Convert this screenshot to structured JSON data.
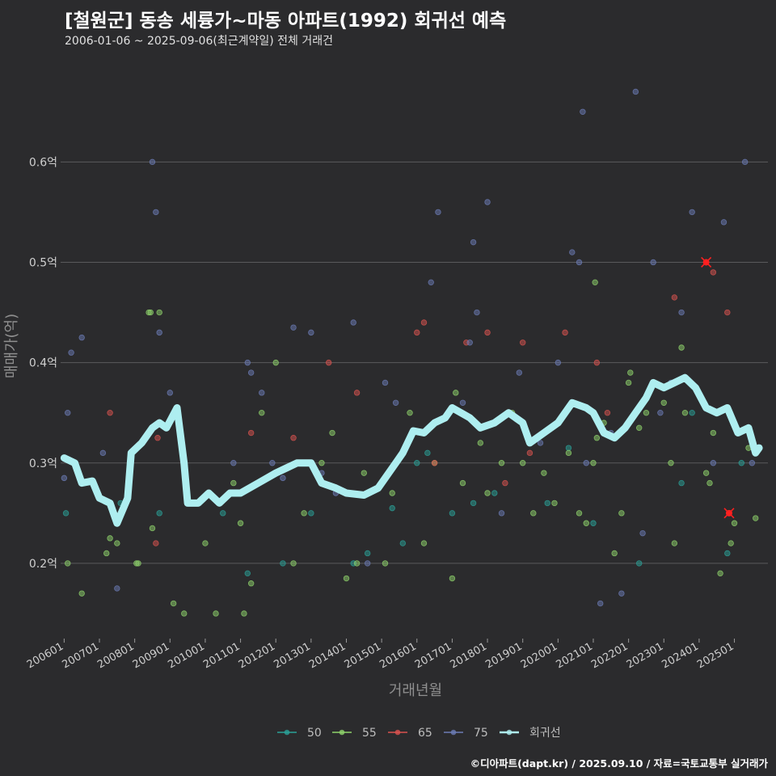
{
  "header": {
    "title": "[철원군] 동송 세륭가~마동 아파트(1992) 회귀선 예측",
    "subtitle": "2006-01-06 ~ 2025-09-06(최근계약일) 전체 거래건"
  },
  "footer": {
    "credit": "©디아파트(dapt.kr) / 2025.09.10 / 자료=국토교통부 실거래가"
  },
  "colors": {
    "background": "#2b2b2d",
    "grid": "#5a5a5c",
    "s50": "#2aa198",
    "s55": "#8fd36b",
    "s65": "#d9534f",
    "s75": "#6c7cb5",
    "regression": "#aeeef0",
    "highlight": "#ff2020"
  },
  "chart_data": {
    "type": "scatter",
    "title": "[철원군] 동송 세륭가~마동 아파트(1992) 회귀선 예측",
    "xlabel": "거래년월",
    "ylabel": "매매가(억)",
    "xlim": [
      2005.9,
      2025.95
    ],
    "ylim": [
      0.125,
      0.705
    ],
    "yticks": [
      0.2,
      0.3,
      0.4,
      0.5,
      0.6
    ],
    "ytick_labels": [
      "0.2억",
      "0.3억",
      "0.4억",
      "0.5억",
      "0.6억"
    ],
    "xticks": [
      2006,
      2007,
      2008,
      2009,
      2010,
      2011,
      2012,
      2013,
      2014,
      2015,
      2016,
      2017,
      2018,
      2019,
      2020,
      2021,
      2022,
      2023,
      2024,
      2025
    ],
    "xtick_labels": [
      "200601",
      "200701",
      "200801",
      "200901",
      "201001",
      "201101",
      "201201",
      "201301",
      "201401",
      "201501",
      "201601",
      "201701",
      "201801",
      "201901",
      "202001",
      "202101",
      "202201",
      "202301",
      "202401",
      "202501"
    ],
    "legend": {
      "position": "bottom",
      "entries": [
        "50",
        "55",
        "65",
        "75",
        "회귀선"
      ]
    },
    "series": [
      {
        "name": "50",
        "points": [
          [
            2006.05,
            0.25
          ],
          [
            2007.6,
            0.26
          ],
          [
            2008.7,
            0.25
          ],
          [
            2010.5,
            0.25
          ],
          [
            2011.2,
            0.19
          ],
          [
            2012.2,
            0.2
          ],
          [
            2013.0,
            0.25
          ],
          [
            2014.2,
            0.2
          ],
          [
            2014.6,
            0.21
          ],
          [
            2015.3,
            0.255
          ],
          [
            2015.6,
            0.22
          ],
          [
            2016.0,
            0.3
          ],
          [
            2016.3,
            0.31
          ],
          [
            2017.0,
            0.25
          ],
          [
            2017.6,
            0.26
          ],
          [
            2018.2,
            0.27
          ],
          [
            2019.7,
            0.26
          ],
          [
            2020.3,
            0.315
          ],
          [
            2021.0,
            0.24
          ],
          [
            2022.3,
            0.2
          ],
          [
            2023.5,
            0.28
          ],
          [
            2023.8,
            0.35
          ],
          [
            2024.8,
            0.21
          ],
          [
            2025.2,
            0.3
          ]
        ]
      },
      {
        "name": "55",
        "points": [
          [
            2006.1,
            0.2
          ],
          [
            2006.5,
            0.17
          ],
          [
            2007.2,
            0.21
          ],
          [
            2007.3,
            0.225
          ],
          [
            2007.5,
            0.22
          ],
          [
            2008.05,
            0.2
          ],
          [
            2008.1,
            0.2
          ],
          [
            2008.4,
            0.45
          ],
          [
            2008.45,
            0.45
          ],
          [
            2008.5,
            0.235
          ],
          [
            2008.7,
            0.45
          ],
          [
            2009.1,
            0.16
          ],
          [
            2009.4,
            0.15
          ],
          [
            2010.0,
            0.22
          ],
          [
            2010.3,
            0.15
          ],
          [
            2010.8,
            0.28
          ],
          [
            2011.0,
            0.24
          ],
          [
            2011.1,
            0.15
          ],
          [
            2011.3,
            0.18
          ],
          [
            2011.6,
            0.35
          ],
          [
            2012.0,
            0.4
          ],
          [
            2012.5,
            0.2
          ],
          [
            2012.8,
            0.25
          ],
          [
            2013.3,
            0.3
          ],
          [
            2013.6,
            0.33
          ],
          [
            2014.0,
            0.185
          ],
          [
            2014.3,
            0.2
          ],
          [
            2014.5,
            0.29
          ],
          [
            2015.1,
            0.2
          ],
          [
            2015.3,
            0.27
          ],
          [
            2015.8,
            0.35
          ],
          [
            2016.2,
            0.22
          ],
          [
            2016.5,
            0.3
          ],
          [
            2017.0,
            0.185
          ],
          [
            2017.1,
            0.37
          ],
          [
            2017.3,
            0.28
          ],
          [
            2017.8,
            0.32
          ],
          [
            2018.0,
            0.27
          ],
          [
            2018.4,
            0.3
          ],
          [
            2018.7,
            0.35
          ],
          [
            2019.0,
            0.3
          ],
          [
            2019.3,
            0.25
          ],
          [
            2019.6,
            0.29
          ],
          [
            2019.9,
            0.26
          ],
          [
            2020.3,
            0.31
          ],
          [
            2020.6,
            0.25
          ],
          [
            2020.8,
            0.24
          ],
          [
            2021.0,
            0.3
          ],
          [
            2021.05,
            0.48
          ],
          [
            2021.1,
            0.325
          ],
          [
            2021.3,
            0.34
          ],
          [
            2021.6,
            0.21
          ],
          [
            2021.8,
            0.25
          ],
          [
            2022.0,
            0.38
          ],
          [
            2022.05,
            0.39
          ],
          [
            2022.3,
            0.335
          ],
          [
            2022.5,
            0.35
          ],
          [
            2023.0,
            0.36
          ],
          [
            2023.2,
            0.3
          ],
          [
            2023.3,
            0.22
          ],
          [
            2023.5,
            0.415
          ],
          [
            2023.6,
            0.35
          ],
          [
            2024.2,
            0.29
          ],
          [
            2024.3,
            0.28
          ],
          [
            2024.4,
            0.33
          ],
          [
            2024.6,
            0.19
          ],
          [
            2024.9,
            0.22
          ],
          [
            2025.0,
            0.24
          ],
          [
            2025.4,
            0.315
          ],
          [
            2025.6,
            0.245
          ]
        ]
      },
      {
        "name": "65",
        "points": [
          [
            2007.3,
            0.35
          ],
          [
            2008.6,
            0.22
          ],
          [
            2008.65,
            0.325
          ],
          [
            2011.3,
            0.33
          ],
          [
            2012.5,
            0.325
          ],
          [
            2013.5,
            0.4
          ],
          [
            2014.3,
            0.37
          ],
          [
            2016.0,
            0.43
          ],
          [
            2016.2,
            0.44
          ],
          [
            2016.5,
            0.3
          ],
          [
            2017.4,
            0.42
          ],
          [
            2018.0,
            0.43
          ],
          [
            2018.5,
            0.28
          ],
          [
            2019.0,
            0.42
          ],
          [
            2019.2,
            0.31
          ],
          [
            2020.2,
            0.43
          ],
          [
            2021.1,
            0.4
          ],
          [
            2021.4,
            0.35
          ],
          [
            2023.3,
            0.465
          ],
          [
            2024.2,
            0.5
          ],
          [
            2024.4,
            0.49
          ],
          [
            2024.8,
            0.45
          ],
          [
            2024.85,
            0.25
          ]
        ]
      },
      {
        "name": "75",
        "points": [
          [
            2006.0,
            0.285
          ],
          [
            2006.1,
            0.35
          ],
          [
            2006.2,
            0.41
          ],
          [
            2006.5,
            0.425
          ],
          [
            2007.1,
            0.31
          ],
          [
            2007.5,
            0.175
          ],
          [
            2008.5,
            0.6
          ],
          [
            2008.6,
            0.55
          ],
          [
            2008.7,
            0.43
          ],
          [
            2009.0,
            0.37
          ],
          [
            2010.8,
            0.3
          ],
          [
            2011.2,
            0.4
          ],
          [
            2011.3,
            0.39
          ],
          [
            2011.6,
            0.37
          ],
          [
            2011.9,
            0.3
          ],
          [
            2012.2,
            0.285
          ],
          [
            2012.5,
            0.435
          ],
          [
            2013.0,
            0.43
          ],
          [
            2013.3,
            0.29
          ],
          [
            2013.7,
            0.27
          ],
          [
            2014.2,
            0.44
          ],
          [
            2014.6,
            0.2
          ],
          [
            2015.1,
            0.38
          ],
          [
            2015.4,
            0.36
          ],
          [
            2016.4,
            0.48
          ],
          [
            2016.6,
            0.55
          ],
          [
            2017.3,
            0.36
          ],
          [
            2017.5,
            0.42
          ],
          [
            2017.6,
            0.52
          ],
          [
            2017.7,
            0.45
          ],
          [
            2018.0,
            0.56
          ],
          [
            2018.4,
            0.25
          ],
          [
            2018.9,
            0.39
          ],
          [
            2019.5,
            0.32
          ],
          [
            2020.0,
            0.4
          ],
          [
            2020.4,
            0.51
          ],
          [
            2020.6,
            0.5
          ],
          [
            2020.7,
            0.65
          ],
          [
            2020.8,
            0.3
          ],
          [
            2021.2,
            0.16
          ],
          [
            2021.5,
            0.33
          ],
          [
            2021.8,
            0.17
          ],
          [
            2022.2,
            0.67
          ],
          [
            2022.4,
            0.23
          ],
          [
            2022.7,
            0.5
          ],
          [
            2022.9,
            0.35
          ],
          [
            2023.2,
            0.38
          ],
          [
            2023.5,
            0.45
          ],
          [
            2023.8,
            0.55
          ],
          [
            2024.4,
            0.3
          ],
          [
            2024.7,
            0.54
          ],
          [
            2025.3,
            0.6
          ],
          [
            2025.5,
            0.3
          ]
        ]
      }
    ],
    "regression": [
      [
        2006.0,
        0.305
      ],
      [
        2006.3,
        0.3
      ],
      [
        2006.5,
        0.28
      ],
      [
        2006.8,
        0.282
      ],
      [
        2007.0,
        0.265
      ],
      [
        2007.3,
        0.26
      ],
      [
        2007.5,
        0.24
      ],
      [
        2007.8,
        0.265
      ],
      [
        2007.9,
        0.31
      ],
      [
        2008.2,
        0.32
      ],
      [
        2008.5,
        0.335
      ],
      [
        2008.7,
        0.34
      ],
      [
        2008.9,
        0.335
      ],
      [
        2009.2,
        0.355
      ],
      [
        2009.4,
        0.3
      ],
      [
        2009.5,
        0.26
      ],
      [
        2009.8,
        0.26
      ],
      [
        2010.1,
        0.27
      ],
      [
        2010.4,
        0.26
      ],
      [
        2010.7,
        0.27
      ],
      [
        2011.0,
        0.27
      ],
      [
        2011.5,
        0.28
      ],
      [
        2012.0,
        0.29
      ],
      [
        2012.3,
        0.295
      ],
      [
        2012.6,
        0.3
      ],
      [
        2013.0,
        0.3
      ],
      [
        2013.3,
        0.28
      ],
      [
        2013.7,
        0.275
      ],
      [
        2014.0,
        0.27
      ],
      [
        2014.5,
        0.268
      ],
      [
        2014.9,
        0.275
      ],
      [
        2015.1,
        0.285
      ],
      [
        2015.4,
        0.3
      ],
      [
        2015.6,
        0.31
      ],
      [
        2015.9,
        0.332
      ],
      [
        2016.2,
        0.33
      ],
      [
        2016.5,
        0.34
      ],
      [
        2016.8,
        0.345
      ],
      [
        2017.0,
        0.355
      ],
      [
        2017.5,
        0.345
      ],
      [
        2017.8,
        0.335
      ],
      [
        2018.2,
        0.34
      ],
      [
        2018.6,
        0.35
      ],
      [
        2019.0,
        0.34
      ],
      [
        2019.2,
        0.32
      ],
      [
        2019.6,
        0.33
      ],
      [
        2020.0,
        0.34
      ],
      [
        2020.4,
        0.36
      ],
      [
        2020.8,
        0.355
      ],
      [
        2021.0,
        0.35
      ],
      [
        2021.3,
        0.33
      ],
      [
        2021.6,
        0.325
      ],
      [
        2021.9,
        0.335
      ],
      [
        2022.2,
        0.35
      ],
      [
        2022.5,
        0.365
      ],
      [
        2022.7,
        0.38
      ],
      [
        2023.0,
        0.375
      ],
      [
        2023.3,
        0.38
      ],
      [
        2023.6,
        0.385
      ],
      [
        2023.9,
        0.375
      ],
      [
        2024.2,
        0.355
      ],
      [
        2024.5,
        0.35
      ],
      [
        2024.8,
        0.355
      ],
      [
        2025.1,
        0.33
      ],
      [
        2025.4,
        0.335
      ],
      [
        2025.6,
        0.31
      ],
      [
        2025.7,
        0.315
      ]
    ],
    "highlights": [
      [
        2024.2,
        0.5
      ],
      [
        2024.85,
        0.25
      ]
    ]
  }
}
